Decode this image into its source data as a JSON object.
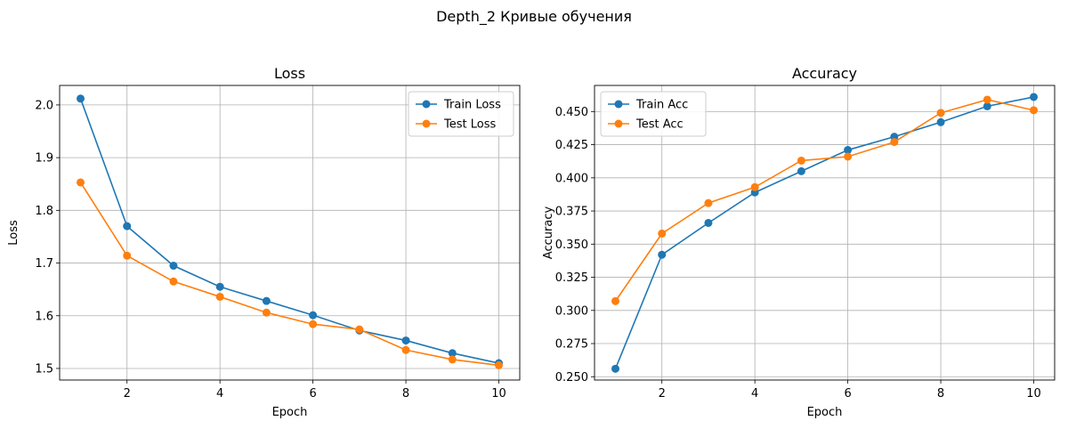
{
  "figure": {
    "suptitle": "Depth_2 Кривые обучения"
  },
  "chart_data": [
    {
      "type": "line",
      "title": "Loss",
      "xlabel": "Epoch",
      "ylabel": "Loss",
      "x": [
        1,
        2,
        3,
        4,
        5,
        6,
        7,
        8,
        9,
        10
      ],
      "xlim": [
        0.55,
        10.45
      ],
      "ylim": [
        1.478,
        2.037
      ],
      "xticks": [
        2,
        4,
        6,
        8,
        10
      ],
      "yticks": [
        1.5,
        1.6,
        1.7,
        1.8,
        1.9,
        2.0
      ],
      "ytick_labels": [
        "1.5",
        "1.6",
        "1.7",
        "1.8",
        "1.9",
        "2.0"
      ],
      "grid": true,
      "legend_position": "upper right",
      "series": [
        {
          "name": "Train Loss",
          "color": "#1f77b4",
          "values": [
            2.012,
            1.77,
            1.695,
            1.655,
            1.628,
            1.601,
            1.572,
            1.553,
            1.529,
            1.51
          ]
        },
        {
          "name": "Test Loss",
          "color": "#ff7f0e",
          "values": [
            1.853,
            1.714,
            1.665,
            1.636,
            1.606,
            1.584,
            1.574,
            1.535,
            1.517,
            1.506
          ]
        }
      ]
    },
    {
      "type": "line",
      "title": "Accuracy",
      "xlabel": "Epoch",
      "ylabel": "Accuracy",
      "x": [
        1,
        2,
        3,
        4,
        5,
        6,
        7,
        8,
        9,
        10
      ],
      "xlim": [
        0.55,
        10.45
      ],
      "ylim": [
        0.2475,
        0.4697
      ],
      "xticks": [
        2,
        4,
        6,
        8,
        10
      ],
      "yticks": [
        0.25,
        0.275,
        0.3,
        0.325,
        0.35,
        0.375,
        0.4,
        0.425,
        0.45
      ],
      "ytick_labels": [
        "0.250",
        "0.275",
        "0.300",
        "0.325",
        "0.350",
        "0.375",
        "0.400",
        "0.425",
        "0.450"
      ],
      "grid": true,
      "legend_position": "upper left",
      "series": [
        {
          "name": "Train Acc",
          "color": "#1f77b4",
          "values": [
            0.256,
            0.342,
            0.366,
            0.389,
            0.405,
            0.421,
            0.431,
            0.442,
            0.454,
            0.461
          ]
        },
        {
          "name": "Test Acc",
          "color": "#ff7f0e",
          "values": [
            0.307,
            0.358,
            0.381,
            0.393,
            0.413,
            0.416,
            0.427,
            0.449,
            0.459,
            0.451
          ]
        }
      ]
    }
  ]
}
